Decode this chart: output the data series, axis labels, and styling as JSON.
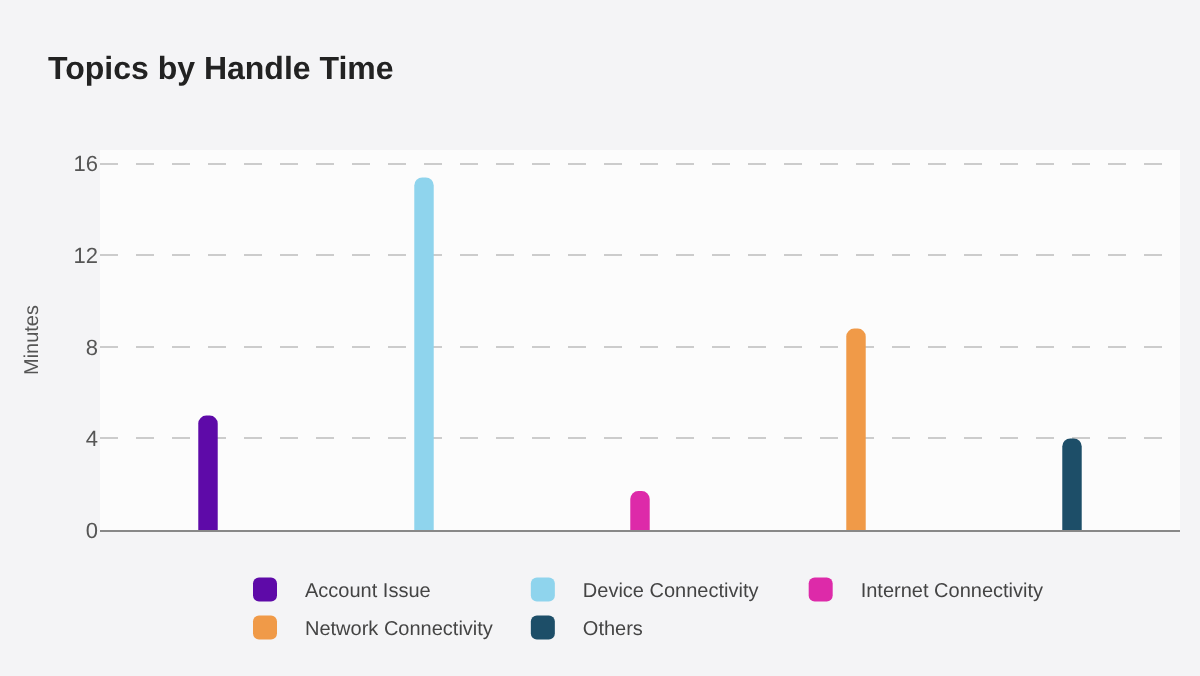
{
  "chart_data": {
    "type": "bar",
    "title": "Topics by Handle Time",
    "ylabel": "Minutes",
    "categories": [
      null,
      null,
      null,
      null,
      null
    ],
    "series": [
      {
        "name": "Account Issue",
        "color": "#5e0aa8",
        "values": [
          5.0,
          null,
          null,
          null,
          null
        ]
      },
      {
        "name": "Device Connectivity",
        "color": "#8fd4ed",
        "values": [
          null,
          15.4,
          null,
          null,
          null
        ]
      },
      {
        "name": "Internet Connectivity",
        "color": "#dd2aa9",
        "values": [
          null,
          null,
          1.7,
          null,
          null
        ]
      },
      {
        "name": "Network Connectivity",
        "color": "#f09a48",
        "values": [
          null,
          null,
          null,
          8.8,
          null
        ]
      },
      {
        "name": "Others",
        "color": "#1d4e68",
        "values": [
          null,
          null,
          null,
          null,
          4.0
        ]
      }
    ],
    "ylim": [
      0,
      16.6
    ],
    "yticks": [
      0,
      4,
      8,
      12,
      16
    ],
    "grid": "y",
    "legend": "bottom"
  }
}
